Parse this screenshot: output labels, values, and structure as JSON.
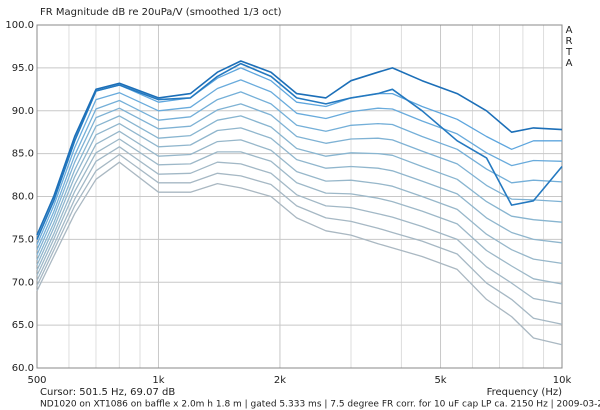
{
  "chart_data": {
    "type": "line",
    "title": "FR Magnitude dB re 20uPa/V (smoothed 1/3 oct)",
    "watermark": "ARTA",
    "xlabel": "Frequency (Hz)",
    "cursor_text": "Cursor: 501.5 Hz, 69.07 dB",
    "footer": "ND1020 on XT1086 on baffle x 2.0m h 1.8 m | gated 5.333 ms | 7.5 degree FR corr. for 10 uF cap LP ca. 2150 Hz | 2009-03-21",
    "xlog": true,
    "grid": true,
    "xlim": [
      500,
      10000
    ],
    "ylim": [
      60,
      100
    ],
    "xticks": [
      500,
      {
        "value": 1000,
        "label": "1k"
      },
      {
        "value": 2000,
        "label": "2k"
      },
      {
        "value": 5000,
        "label": "5k"
      },
      {
        "value": 10000,
        "label": "10k"
      }
    ],
    "xminor": [
      600,
      700,
      800,
      900,
      3000,
      4000,
      6000,
      7000,
      8000,
      9000
    ],
    "yticks": [
      {
        "value": 60,
        "label": "60.0"
      },
      {
        "value": 65,
        "label": "65.0"
      },
      {
        "value": 70,
        "label": "70.0"
      },
      {
        "value": 75,
        "label": "75.0"
      },
      {
        "value": 80,
        "label": "80.0"
      },
      {
        "value": 85,
        "label": "85.0"
      },
      {
        "value": 90,
        "label": "90.0"
      },
      {
        "value": 95,
        "label": "95.0"
      },
      {
        "value": 100,
        "label": "100.0"
      }
    ],
    "x": [
      500,
      550,
      620,
      700,
      800,
      1000,
      1200,
      1400,
      1600,
      1900,
      2200,
      2600,
      3000,
      3500,
      3800,
      4500,
      5500,
      6500,
      7500,
      8500,
      10000
    ],
    "series": [
      {
        "color": "#1c6fb8",
        "values": [
          75.5,
          80,
          87,
          92.5,
          93.2,
          91.5,
          92,
          94.5,
          95.8,
          94.5,
          92,
          91.5,
          93.5,
          94.5,
          95,
          93.5,
          92,
          90,
          87.5,
          88,
          87.8
        ]
      },
      {
        "color": "#2479c0",
        "values": [
          75,
          79.5,
          86.5,
          92.3,
          93,
          91.3,
          91.5,
          94,
          95.5,
          94,
          91.5,
          90.8,
          91.5,
          92,
          92.5,
          90,
          86.5,
          84.5,
          79,
          79.5,
          83.5
        ]
      },
      {
        "color": "#5ea6de",
        "values": [
          75,
          79.5,
          86.5,
          92.3,
          93,
          91,
          91.5,
          93.8,
          95,
          93.5,
          91,
          90.5,
          91.5,
          92,
          92,
          90.5,
          89,
          87,
          85.5,
          86.5,
          86.5
        ]
      },
      {
        "color": "#69abdc",
        "values": [
          74.4,
          78.9,
          85.7,
          91.3,
          92.1,
          90.0,
          90.4,
          92.6,
          93.6,
          92.2,
          89.7,
          89.1,
          89.9,
          90.3,
          90.2,
          88.8,
          87.3,
          85.1,
          83.6,
          84.2,
          84.1
        ]
      },
      {
        "color": "#74afd8",
        "values": [
          73.8,
          78.2,
          84.8,
          90.2,
          91.2,
          88.9,
          89.3,
          91.3,
          92.2,
          90.8,
          88.3,
          87.6,
          88.3,
          88.5,
          88.4,
          87.0,
          85.5,
          83.2,
          81.6,
          81.9,
          81.7
        ]
      },
      {
        "color": "#7fb2d4",
        "values": [
          73.2,
          77.6,
          84.0,
          89.2,
          90.3,
          87.9,
          88.2,
          90.1,
          90.8,
          89.5,
          87.0,
          86.2,
          86.7,
          86.8,
          86.6,
          85.3,
          83.8,
          81.3,
          79.7,
          79.6,
          79.4
        ]
      },
      {
        "color": "#88b5d0",
        "values": [
          72.6,
          76.9,
          83.1,
          88.2,
          89.4,
          86.8,
          87.1,
          88.9,
          89.4,
          88.1,
          85.6,
          84.7,
          85.1,
          85.0,
          84.8,
          83.5,
          82.0,
          79.4,
          77.7,
          77.3,
          77.0
        ]
      },
      {
        "color": "#90b6cd",
        "values": [
          72.0,
          76.3,
          82.3,
          87.2,
          88.5,
          85.8,
          86.0,
          87.7,
          88.0,
          86.8,
          84.3,
          83.3,
          83.5,
          83.3,
          83.0,
          81.8,
          80.3,
          77.5,
          75.8,
          75.0,
          74.6
        ]
      },
      {
        "color": "#97b7ca",
        "values": [
          71.4,
          75.6,
          81.4,
          86.1,
          87.6,
          84.7,
          84.9,
          86.4,
          86.6,
          85.4,
          82.9,
          81.8,
          81.9,
          81.5,
          81.2,
          80.0,
          78.5,
          75.6,
          73.8,
          72.7,
          72.2
        ]
      },
      {
        "color": "#9db8c8",
        "values": [
          70.8,
          75.0,
          80.6,
          85.1,
          86.7,
          83.7,
          83.8,
          85.2,
          85.2,
          84.1,
          81.6,
          80.4,
          80.3,
          79.8,
          79.4,
          78.3,
          76.8,
          73.7,
          71.9,
          70.4,
          69.8
        ]
      },
      {
        "color": "#a2b8c6",
        "values": [
          70.2,
          74.3,
          79.7,
          84.1,
          85.8,
          82.6,
          82.7,
          84.0,
          83.8,
          82.7,
          80.2,
          78.9,
          78.7,
          78.0,
          77.6,
          76.5,
          75.0,
          71.8,
          69.9,
          68.1,
          67.5
        ]
      },
      {
        "color": "#a6b8c4",
        "values": [
          69.6,
          73.7,
          78.9,
          83.0,
          84.9,
          81.6,
          81.6,
          82.7,
          82.4,
          81.4,
          78.9,
          77.5,
          77.1,
          76.3,
          75.8,
          74.8,
          73.3,
          69.9,
          68.0,
          65.8,
          65.1
        ]
      },
      {
        "color": "#aab8c2",
        "values": [
          69,
          73,
          78,
          82,
          84,
          80.5,
          80.5,
          81.5,
          81,
          80,
          77.5,
          76,
          75.5,
          74.5,
          74,
          73,
          71.5,
          68,
          66,
          63.5,
          62.7
        ]
      }
    ]
  }
}
